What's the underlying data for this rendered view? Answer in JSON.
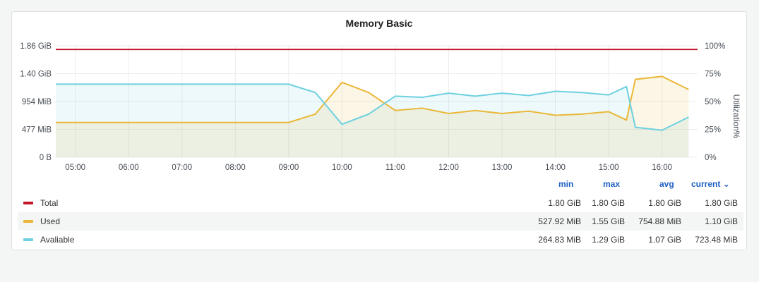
{
  "panel": {
    "title": "Memory Basic"
  },
  "chart_data": {
    "type": "line",
    "y_axis": {
      "ticks": [
        "1.86 GiB",
        "1.40 GiB",
        "954 MiB",
        "477 MiB",
        "0 B"
      ],
      "ylim_gib": [
        0,
        1.86
      ]
    },
    "y2_axis": {
      "ticks": [
        "100%",
        "75%",
        "50%",
        "25%",
        "0%"
      ],
      "label": "Utilization%"
    },
    "x_axis": {
      "ticks": [
        "05:00",
        "06:00",
        "07:00",
        "08:00",
        "09:00",
        "10:00",
        "11:00",
        "12:00",
        "13:00",
        "14:00",
        "15:00",
        "16:00"
      ]
    },
    "series": [
      {
        "name": "Total",
        "color": "#c4162a",
        "x": [
          "04:38",
          "16:40"
        ],
        "values_gib": [
          1.8,
          1.8
        ]
      },
      {
        "name": "Used",
        "color": "#eab839",
        "x": [
          "04:38",
          "05:00",
          "06:00",
          "07:00",
          "08:00",
          "09:00",
          "09:30",
          "10:00",
          "10:30",
          "11:00",
          "11:30",
          "12:00",
          "12:30",
          "13:00",
          "13:30",
          "14:00",
          "14:30",
          "15:00",
          "15:20",
          "15:30",
          "16:00",
          "16:30"
        ],
        "values_gib": [
          0.58,
          0.58,
          0.58,
          0.58,
          0.58,
          0.58,
          0.72,
          1.25,
          1.08,
          0.78,
          0.82,
          0.73,
          0.78,
          0.73,
          0.77,
          0.7,
          0.72,
          0.76,
          0.62,
          1.3,
          1.35,
          1.13
        ]
      },
      {
        "name": "Avaliable",
        "color": "#6ed0e0",
        "x": [
          "04:38",
          "05:00",
          "06:00",
          "07:00",
          "08:00",
          "09:00",
          "09:30",
          "10:00",
          "10:30",
          "11:00",
          "11:30",
          "12:00",
          "12:30",
          "13:00",
          "13:30",
          "14:00",
          "14:30",
          "15:00",
          "15:20",
          "15:30",
          "16:00",
          "16:30"
        ],
        "values_gib": [
          1.22,
          1.22,
          1.22,
          1.22,
          1.22,
          1.22,
          1.08,
          0.55,
          0.72,
          1.02,
          1.0,
          1.07,
          1.02,
          1.07,
          1.03,
          1.1,
          1.08,
          1.04,
          1.18,
          0.5,
          0.45,
          0.67
        ]
      }
    ],
    "legend_placement": "bottom",
    "grid": true
  },
  "legend": {
    "headers": {
      "min": "min",
      "max": "max",
      "avg": "avg",
      "current": "current"
    },
    "rows": [
      {
        "name": "Total",
        "color": "#c4162a",
        "min": "1.80 GiB",
        "max": "1.80 GiB",
        "avg": "1.80 GiB",
        "current": "1.80 GiB"
      },
      {
        "name": "Used",
        "color": "#eab839",
        "min": "527.92 MiB",
        "max": "1.55 GiB",
        "avg": "754.88 MiB",
        "current": "1.10 GiB"
      },
      {
        "name": "Avaliable",
        "color": "#6ed0e0",
        "min": "264.83 MiB",
        "max": "1.29 GiB",
        "avg": "1.07 GiB",
        "current": "723.48 MiB"
      }
    ],
    "sort_icon": "chevron-down-icon"
  }
}
